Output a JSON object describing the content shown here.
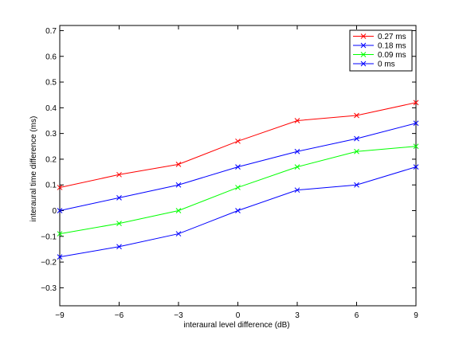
{
  "chart_data": {
    "type": "line",
    "title": "",
    "xlabel": "interaural level difference (dB)",
    "ylabel": "interaural time difference (ms)",
    "xlim": [
      -9,
      9
    ],
    "ylim": [
      -0.37,
      0.72
    ],
    "xticks": [
      -9,
      -6,
      -3,
      0,
      3,
      6,
      9
    ],
    "yticks": [
      -0.3,
      -0.2,
      -0.1,
      0,
      0.1,
      0.2,
      0.3,
      0.4,
      0.5,
      0.6,
      0.7
    ],
    "grid": false,
    "legend_position": "top-right",
    "marker": "x",
    "x": [
      -9,
      -6,
      -3,
      0,
      3,
      6,
      9
    ],
    "series": [
      {
        "name": "0.27 ms",
        "color": "#ff0000",
        "values": [
          0.09,
          0.14,
          0.18,
          0.27,
          0.35,
          0.37,
          0.42
        ]
      },
      {
        "name": "0.18 ms",
        "color": "#0000ff",
        "values": [
          0.0,
          0.05,
          0.1,
          0.17,
          0.23,
          0.28,
          0.34
        ]
      },
      {
        "name": "0.09 ms",
        "color": "#00ff00",
        "values": [
          -0.09,
          -0.05,
          0.0,
          0.09,
          0.17,
          0.23,
          0.25
        ]
      },
      {
        "name": "0 ms",
        "color": "#0000ff",
        "values": [
          -0.18,
          -0.14,
          -0.09,
          0.0,
          0.08,
          0.1,
          0.17
        ]
      }
    ]
  }
}
